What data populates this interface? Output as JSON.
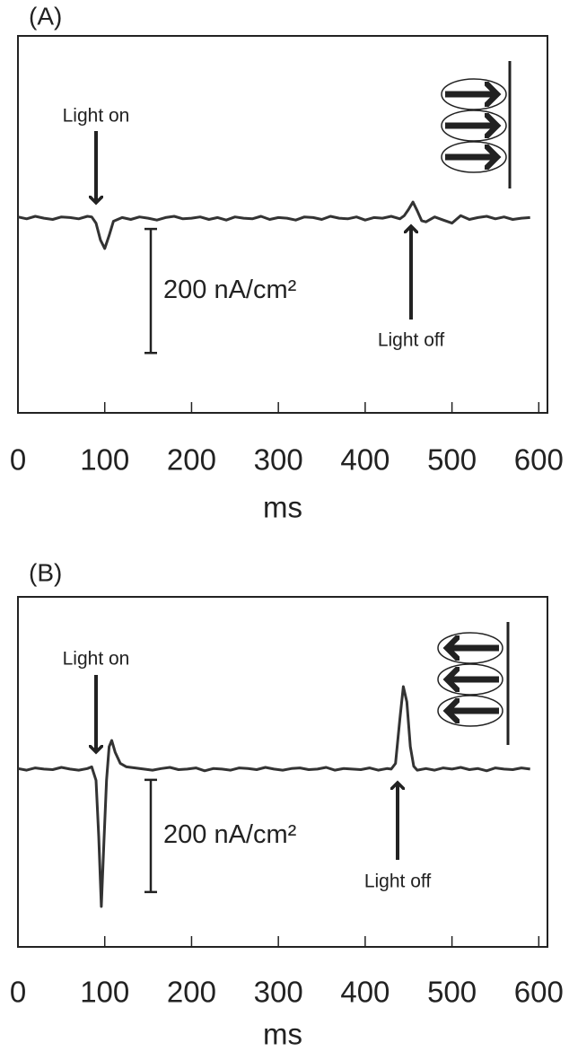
{
  "chart_data": [
    {
      "type": "line",
      "title": "(A)",
      "xlabel": "ms",
      "color": "#333333",
      "x": [
        0,
        10,
        20,
        30,
        40,
        50,
        60,
        70,
        80,
        85,
        90,
        95,
        100,
        105,
        110,
        120,
        130,
        140,
        150,
        160,
        170,
        180,
        190,
        200,
        210,
        220,
        230,
        240,
        250,
        260,
        270,
        280,
        290,
        300,
        310,
        320,
        330,
        340,
        350,
        360,
        370,
        380,
        390,
        400,
        410,
        420,
        430,
        440,
        445,
        450,
        455,
        460,
        465,
        470,
        480,
        490,
        500,
        510,
        520,
        530,
        540,
        550,
        560,
        570,
        580,
        590
      ],
      "values": [
        2,
        -1,
        3,
        0,
        -2,
        2,
        1,
        -1,
        3,
        2,
        -8,
        -35,
        -49,
        -28,
        -5,
        1,
        -2,
        2,
        0,
        -3,
        1,
        3,
        -1,
        0,
        2,
        -2,
        1,
        -3,
        2,
        0,
        -1,
        3,
        -2,
        1,
        0,
        -3,
        2,
        1,
        -2,
        3,
        0,
        -1,
        2,
        -3,
        1,
        0,
        3,
        -1,
        4,
        14,
        26,
        12,
        -4,
        -6,
        2,
        -3,
        -8,
        4,
        -2,
        1,
        3,
        -1,
        2,
        -2,
        0,
        1
      ],
      "xlim": [
        0,
        610
      ],
      "xticks": [
        0,
        100,
        200,
        300,
        400,
        500,
        600
      ],
      "ylim": [
        -314,
        294
      ],
      "annotations": [
        "Light on",
        "Light off"
      ],
      "scale_bar": {
        "value": 200,
        "label": "200 nA/cm²"
      }
    },
    {
      "type": "line",
      "title": "(B)",
      "xlabel": "ms",
      "color": "#333333",
      "x": [
        0,
        10,
        20,
        30,
        40,
        50,
        60,
        70,
        80,
        85,
        90,
        93,
        96,
        99,
        102,
        105,
        108,
        112,
        118,
        125,
        135,
        145,
        155,
        165,
        175,
        185,
        195,
        205,
        215,
        225,
        235,
        245,
        255,
        265,
        275,
        285,
        295,
        305,
        315,
        325,
        335,
        345,
        355,
        365,
        375,
        385,
        395,
        405,
        415,
        425,
        430,
        435,
        440,
        444,
        448,
        452,
        456,
        460,
        470,
        480,
        490,
        500,
        510,
        520,
        530,
        540,
        550,
        560,
        570,
        580,
        590
      ],
      "values": [
        1,
        -2,
        2,
        0,
        -1,
        3,
        0,
        -2,
        1,
        4,
        -20,
        -120,
        -245,
        -130,
        -20,
        40,
        51,
        30,
        10,
        4,
        2,
        0,
        -2,
        1,
        3,
        -1,
        0,
        2,
        -3,
        1,
        0,
        -2,
        2,
        1,
        -1,
        3,
        0,
        -2,
        1,
        2,
        -1,
        0,
        3,
        -2,
        1,
        0,
        -1,
        2,
        -2,
        1,
        0,
        10,
        90,
        147,
        120,
        40,
        5,
        -2,
        1,
        -2,
        2,
        0,
        3,
        -1,
        1,
        -3,
        2,
        0,
        -1,
        2,
        0
      ],
      "xlim": [
        0,
        610
      ],
      "xticks": [
        0,
        100,
        200,
        300,
        400,
        500,
        600
      ],
      "ylim": [
        -317,
        307
      ],
      "annotations": [
        "Light on",
        "Light off"
      ],
      "scale_bar": {
        "value": 200,
        "label": "200 nA/cm²"
      }
    }
  ]
}
